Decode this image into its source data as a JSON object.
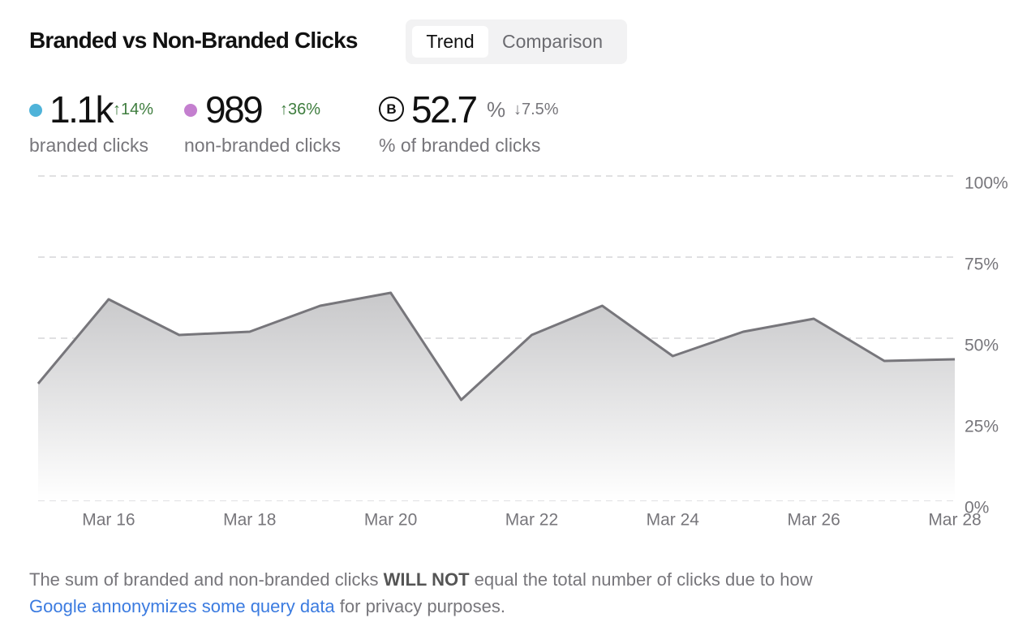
{
  "header": {
    "title": "Branded vs Non-Branded Clicks",
    "tabs": [
      "Trend",
      "Comparison"
    ]
  },
  "metrics": [
    {
      "value": "1.1k",
      "change": "↑14%",
      "label": "branded clicks",
      "color": "#4fb3d9"
    },
    {
      "value": "989",
      "change": "↑36%",
      "label": "non-branded clicks",
      "color": "#c47fcf"
    },
    {
      "icon": "B",
      "value": "52.7",
      "unit": "%",
      "change": "↓7.5%",
      "label": "% of branded clicks"
    }
  ],
  "chart_data": {
    "type": "area",
    "categories": [
      null,
      "Mar 16",
      null,
      "Mar 18",
      null,
      "Mar 20",
      null,
      "Mar 22",
      null,
      "Mar 24",
      null,
      "Mar 26",
      null,
      "Mar 28"
    ],
    "series": [
      {
        "name": "% of branded clicks",
        "color": "#77767b",
        "values": [
          36,
          62,
          51,
          52,
          60,
          64,
          31,
          51,
          60,
          44.5,
          52,
          56,
          43,
          43.5
        ]
      }
    ],
    "ylim": [
      0,
      100
    ],
    "yticks": [
      {
        "value": 0,
        "label": "0%"
      },
      {
        "value": 25,
        "label": "25%"
      },
      {
        "value": 50,
        "label": "50%"
      },
      {
        "value": 75,
        "label": "75%"
      },
      {
        "value": 100,
        "label": "100%"
      }
    ],
    "grid": true
  },
  "footnote": {
    "text1": "The sum of branded and non-branded clicks ",
    "bold": "WILL NOT",
    "text2": " equal the total number of clicks due to how",
    "link": "Google annonymizes some query data",
    "text3": " for privacy purposes."
  }
}
